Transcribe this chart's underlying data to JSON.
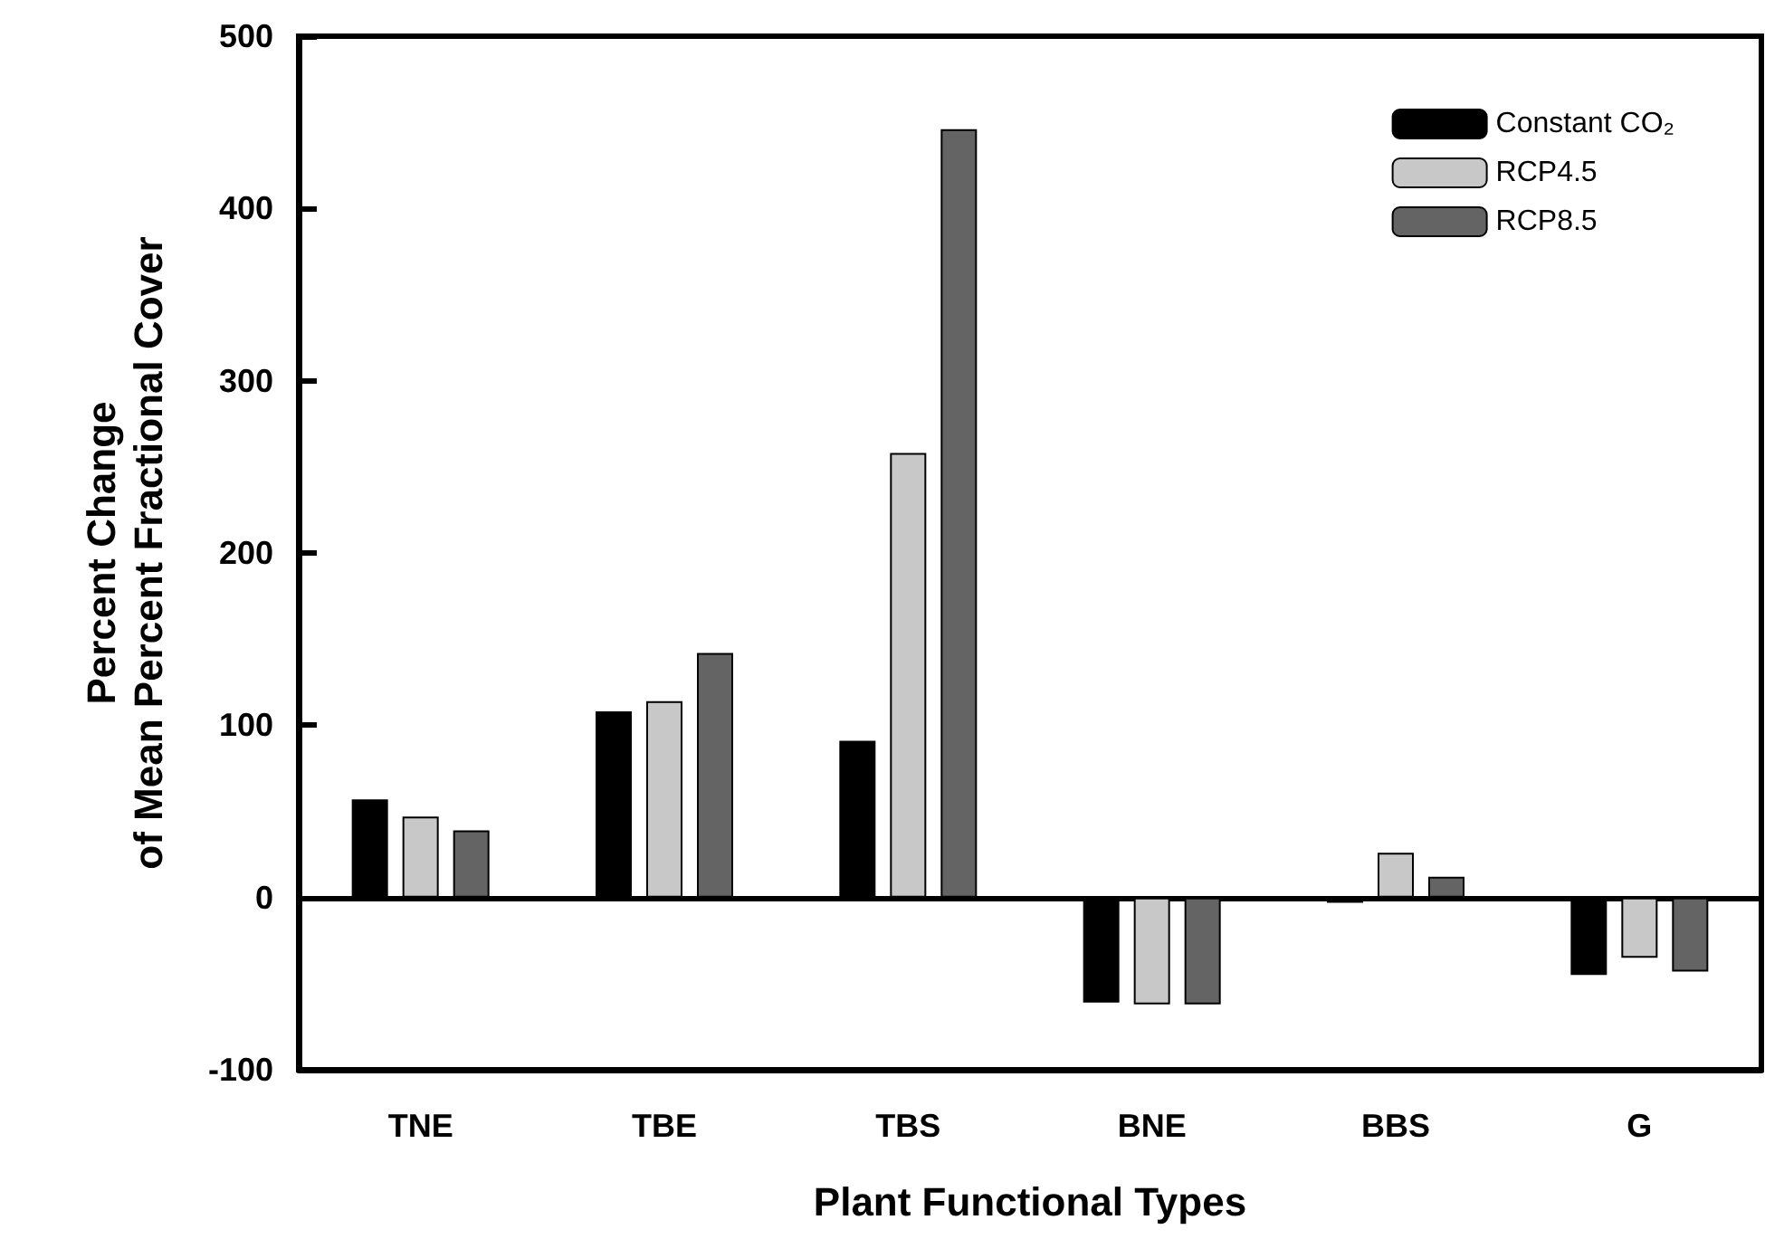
{
  "chart_data": {
    "type": "bar",
    "xlabel": "Plant Functional Types",
    "ylabel": "Percent Change\nof Mean Percent Fractional Cover",
    "categories": [
      "TNE",
      "TBE",
      "TBS",
      "BNE",
      "BBS",
      "G"
    ],
    "series": [
      {
        "name": "Constant CO₂",
        "color": "#000000",
        "values": [
          57,
          108,
          91,
          -61,
          -3,
          -45
        ]
      },
      {
        "name": "RCP4.5",
        "color": "#c8c8c8",
        "values": [
          47,
          114,
          258,
          -62,
          26,
          -35
        ]
      },
      {
        "name": "RCP8.5",
        "color": "#646464",
        "values": [
          39,
          142,
          446,
          -62,
          12,
          -43
        ]
      }
    ],
    "ylim": [
      -100,
      500
    ],
    "yticks": [
      -100,
      0,
      100,
      200,
      300,
      400,
      500
    ],
    "legend": "top right"
  }
}
